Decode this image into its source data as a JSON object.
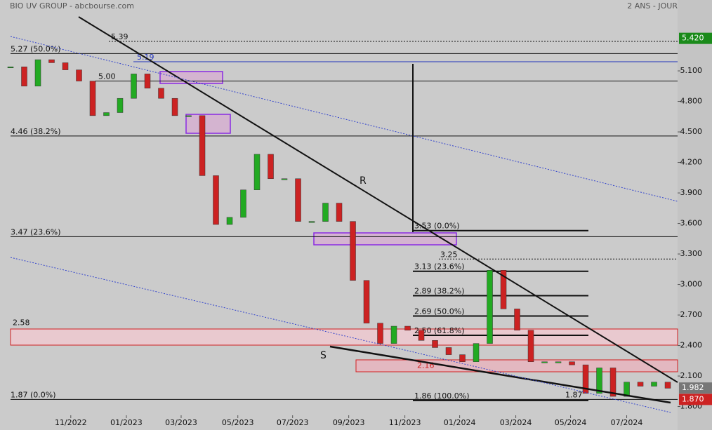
{
  "chart_data": {
    "type": "candlestick",
    "title": "BIO UV GROUP - abcbourse.com",
    "period": "2 ANS - JOUR",
    "series": [
      {
        "name": "BIO UV GROUP",
        "up_color": "#22aa22",
        "down_color": "#cc2222",
        "values": [
          5.14,
          4.95,
          5.21,
          5.18,
          5.11,
          5.0,
          4.66,
          4.69,
          4.83,
          5.07,
          4.93,
          4.83,
          4.66,
          4.66,
          4.07,
          3.59,
          3.66,
          3.93,
          4.28,
          4.04,
          4.04,
          3.62,
          3.62,
          3.8,
          3.62,
          3.04,
          2.62,
          2.42,
          2.59,
          2.55,
          2.45,
          2.38,
          2.31,
          2.24,
          2.42,
          3.14,
          2.76,
          2.55,
          2.24,
          2.24,
          2.24,
          2.21,
          1.93,
          2.18,
          1.9,
          2.04,
          2.0,
          2.04,
          1.98
        ]
      }
    ],
    "xlim": [
      0,
      48.46
    ],
    "xticks": [
      {
        "value": 4.4,
        "label": "11/2022"
      },
      {
        "value": 8.46,
        "label": "01/2023"
      },
      {
        "value": 12.46,
        "label": "03/2023"
      },
      {
        "value": 16.6,
        "label": "05/2023"
      },
      {
        "value": 20.6,
        "label": "07/2023"
      },
      {
        "value": 24.7,
        "label": "09/2023"
      },
      {
        "value": 28.8,
        "label": "11/2023"
      },
      {
        "value": 32.8,
        "label": "01/2024"
      },
      {
        "value": 36.9,
        "label": "03/2024"
      },
      {
        "value": 40.9,
        "label": "05/2024"
      },
      {
        "value": 45,
        "label": "07/2024"
      }
    ],
    "ylim": [
      1.728,
      5.659
    ],
    "yticks": [
      {
        "value": 1.8,
        "label": "1.800"
      },
      {
        "value": 2.1,
        "label": "2.100"
      },
      {
        "value": 2.4,
        "label": "2.400"
      },
      {
        "value": 2.7,
        "label": "2.700"
      },
      {
        "value": 3.0,
        "label": "3.000"
      },
      {
        "value": 3.3,
        "label": "3.300"
      },
      {
        "value": 3.6,
        "label": "3.600"
      },
      {
        "value": 3.9,
        "label": "3.900"
      },
      {
        "value": 4.2,
        "label": "4.200"
      },
      {
        "value": 4.5,
        "label": "4.500"
      },
      {
        "value": 4.8,
        "label": "4.800"
      },
      {
        "value": 5.1,
        "label": "5.100"
      }
    ],
    "levels": [
      {
        "value": 5.39,
        "label": "5.39"
      },
      {
        "value": 5.27,
        "label": "5.27  (50.0%)"
      },
      {
        "value": 5.19,
        "label": "5.19"
      },
      {
        "value": 5.0,
        "label": "5.00"
      },
      {
        "value": 4.46,
        "label": "4.46  (38.2%)"
      },
      {
        "value": 3.47,
        "label": "3.47  (23.6%)"
      },
      {
        "value": 3.53,
        "label": "3.53  (0.0%)"
      },
      {
        "value": 3.25,
        "label": "3.25"
      },
      {
        "value": 3.13,
        "label": "3.13  (23.6%)"
      },
      {
        "value": 2.89,
        "label": "2.89  (38.2%)"
      },
      {
        "value": 2.69,
        "label": "2.69  (50.0%)"
      },
      {
        "value": 2.5,
        "label": "2.50  (61.8%)"
      },
      {
        "value": 2.58,
        "label": "2.58"
      },
      {
        "value": 2.16,
        "label": "2.16"
      },
      {
        "value": 1.86,
        "label": "1.86  (100.0%)"
      },
      {
        "value": 1.87,
        "label": "1.87  (0.0%)"
      },
      {
        "value": 1.87,
        "label": "1.87"
      }
    ],
    "price_tags": [
      {
        "value": 5.42,
        "label": "5.420",
        "color": "#1a8a1a"
      },
      {
        "value": 1.982,
        "label": "1.982",
        "color": "#777777"
      },
      {
        "value": 1.87,
        "label": "1.870",
        "color": "#cc2222"
      }
    ],
    "annotations": [
      {
        "label": "R"
      },
      {
        "label": "S"
      }
    ]
  }
}
